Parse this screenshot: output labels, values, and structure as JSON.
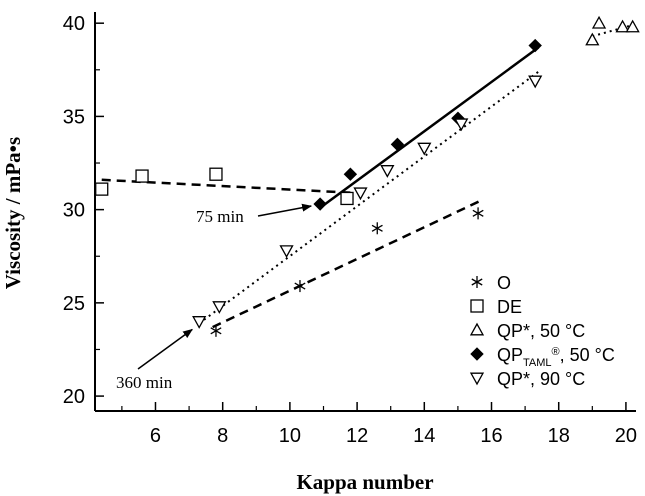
{
  "chart_data": {
    "type": "scatter",
    "xlabel": "Kappa number",
    "ylabel": "Viscosity / mPa•s",
    "xlim": [
      4.2,
      20.3
    ],
    "ylim": [
      19.2,
      40.6
    ],
    "xticks": [
      6,
      8,
      10,
      12,
      14,
      16,
      18,
      20
    ],
    "yticks": [
      20,
      25,
      30,
      35,
      40
    ],
    "grid": false,
    "legend_position": "bottom-right",
    "series": [
      {
        "name": "O",
        "marker": "asterisk",
        "x": [
          7.8,
          10.3,
          12.6,
          15.6
        ],
        "y": [
          23.5,
          25.9,
          29.0,
          29.8
        ]
      },
      {
        "name": "DE",
        "marker": "open-square",
        "x": [
          4.4,
          5.6,
          7.8,
          11.7
        ],
        "y": [
          31.1,
          31.8,
          31.9,
          30.6
        ]
      },
      {
        "name": "QP*, 50 °C",
        "marker": "open-triangle-up",
        "x": [
          19.0,
          19.2,
          19.9,
          20.2
        ],
        "y": [
          39.1,
          40.0,
          39.8,
          39.8
        ]
      },
      {
        "name": "QP(TAML®), 50 °C",
        "marker": "filled-diamond",
        "x": [
          10.9,
          11.8,
          13.2,
          15.0,
          17.3
        ],
        "y": [
          30.3,
          31.9,
          33.5,
          34.9,
          38.8
        ]
      },
      {
        "name": "QP*, 90 °C",
        "marker": "open-triangle-down",
        "x": [
          7.3,
          7.9,
          9.9,
          12.1,
          12.9,
          14.0,
          15.1,
          17.3
        ],
        "y": [
          24.0,
          24.8,
          27.8,
          30.9,
          32.1,
          33.3,
          34.6,
          36.9
        ]
      }
    ],
    "fit_lines": [
      {
        "series": "O",
        "style": "dashed",
        "x": [
          7.7,
          15.7
        ],
        "y": [
          23.7,
          30.5
        ]
      },
      {
        "series": "DE",
        "style": "dashed",
        "x": [
          4.4,
          11.9
        ],
        "y": [
          31.6,
          30.9
        ]
      },
      {
        "series": "QP*, 50 °C",
        "style": "dotted",
        "x": [
          19.0,
          20.2
        ],
        "y": [
          39.3,
          39.9
        ]
      },
      {
        "series": "QP(TAML®), 50 °C",
        "style": "solid",
        "x": [
          10.9,
          17.4
        ],
        "y": [
          30.1,
          38.7
        ]
      },
      {
        "series": "QP*, 90 °C",
        "style": "dotted",
        "x": [
          7.3,
          17.4
        ],
        "y": [
          23.9,
          37.4
        ]
      }
    ],
    "annotations": [
      {
        "text": "75 min",
        "x": 10.9,
        "y": 30.3
      },
      {
        "text": "360 min",
        "x": 7.3,
        "y": 24.0
      }
    ]
  },
  "legend": {
    "items": [
      {
        "label": "O",
        "marker": "asterisk"
      },
      {
        "label": "DE",
        "marker": "open-square"
      },
      {
        "label": "QP*, 50 °C",
        "marker": "open-triangle-up"
      },
      {
        "label": "QP",
        "sub": "TAML",
        "sup": "®",
        "tail": ", 50 °C",
        "marker": "filled-diamond"
      },
      {
        "label": "QP*, 90 °C",
        "marker": "open-triangle-down"
      }
    ]
  }
}
